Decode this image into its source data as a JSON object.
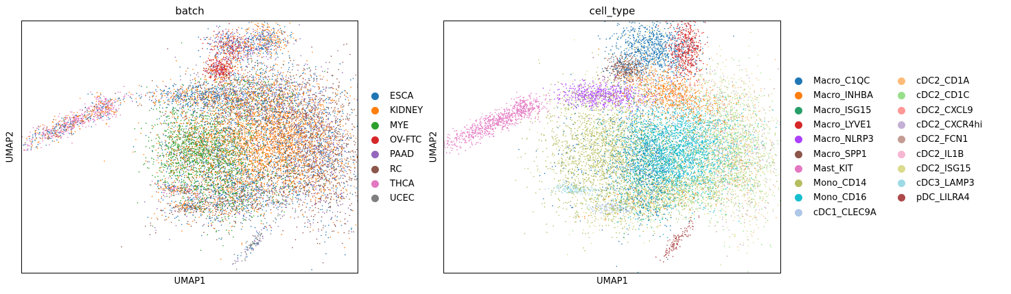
{
  "chart_data": [
    {
      "type": "scatter",
      "title": "batch",
      "xlabel": "UMAP1",
      "ylabel": "UMAP2",
      "grid": false,
      "ticks": false,
      "legend_placement": "right",
      "categories": [
        {
          "name": "ESCA",
          "color": "#1f77b4"
        },
        {
          "name": "KIDNEY",
          "color": "#ff7f0e"
        },
        {
          "name": "MYE",
          "color": "#2ca02c"
        },
        {
          "name": "OV-FTC",
          "color": "#d62728"
        },
        {
          "name": "PAAD",
          "color": "#9467bd"
        },
        {
          "name": "RC",
          "color": "#8c564b"
        },
        {
          "name": "THCA",
          "color": "#e377c2"
        },
        {
          "name": "UCEC",
          "color": "#7f7f7f"
        }
      ]
    },
    {
      "type": "scatter",
      "title": "cell_type",
      "xlabel": "UMAP1",
      "ylabel": "UMAP2",
      "grid": false,
      "ticks": false,
      "legend_placement": "right",
      "categories": [
        {
          "name": "Macro_C1QC",
          "color": "#1f77b4"
        },
        {
          "name": "Macro_INHBA",
          "color": "#ff7f0e"
        },
        {
          "name": "Macro_ISG15",
          "color": "#279e68"
        },
        {
          "name": "Macro_LYVE1",
          "color": "#d62728"
        },
        {
          "name": "Macro_NLRP3",
          "color": "#aa40fc"
        },
        {
          "name": "Macro_SPP1",
          "color": "#8c564b"
        },
        {
          "name": "Mast_KIT",
          "color": "#e377c2"
        },
        {
          "name": "Mono_CD14",
          "color": "#b5bd61"
        },
        {
          "name": "Mono_CD16",
          "color": "#17becf"
        },
        {
          "name": "cDC1_CLEC9A",
          "color": "#aec7e8"
        },
        {
          "name": "cDC2_CD1A",
          "color": "#ffbb78"
        },
        {
          "name": "cDC2_CD1C",
          "color": "#98df8a"
        },
        {
          "name": "cDC2_CXCL9",
          "color": "#ff9896"
        },
        {
          "name": "cDC2_CXCR4hi",
          "color": "#c5b0d5"
        },
        {
          "name": "cDC2_FCN1",
          "color": "#c49c94"
        },
        {
          "name": "cDC2_IL1B",
          "color": "#f7b6d2"
        },
        {
          "name": "cDC2_ISG15",
          "color": "#dbdb8d"
        },
        {
          "name": "cDC3_LAMP3",
          "color": "#9edae5"
        },
        {
          "name": "pDC_LILRA4",
          "color": "#ad494a"
        }
      ]
    }
  ]
}
